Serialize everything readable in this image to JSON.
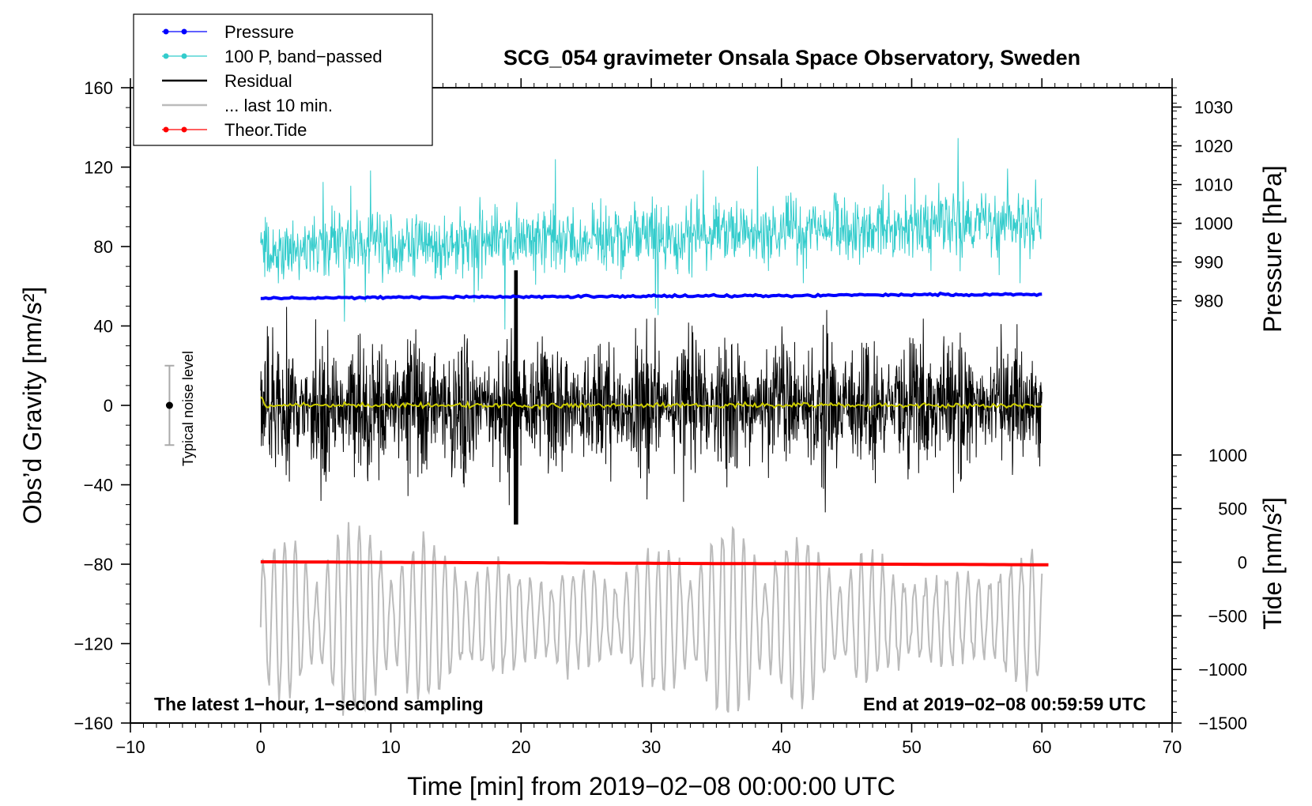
{
  "chart_data": {
    "type": "line",
    "title": "SCG_054 gravimeter Onsala Space Observatory, Sweden",
    "xlabel": "Time [min] from 2019−02−08 00:00:00 UTC",
    "ylabel_left": "Obs’d Gravity [nm/s²]",
    "ylabel_right_top": "Pressure [hPa]",
    "ylabel_right_bottom": "Tide [nm/s²]",
    "xlim": [
      -10,
      70
    ],
    "ylim": [
      -160,
      160
    ],
    "x_ticks": [
      -10,
      0,
      10,
      20,
      30,
      40,
      50,
      60,
      70
    ],
    "x_tick_labels": [
      "−10",
      "0",
      "10",
      "20",
      "30",
      "40",
      "50",
      "60",
      "70"
    ],
    "y_ticks": [
      -160,
      -120,
      -80,
      -40,
      0,
      40,
      80,
      120,
      160
    ],
    "y_tick_labels": [
      "−160",
      "−120",
      "−80",
      "−40",
      "0",
      "40",
      "80",
      "120",
      "160"
    ],
    "pressure_axis": {
      "ticks": [
        980,
        990,
        1000,
        1010,
        1020,
        1030
      ],
      "tick_labels": [
        "980",
        "990",
        "1000",
        "1010",
        "1020",
        "1030"
      ],
      "range_hPa": [
        973.5,
        1035
      ],
      "maps_to_gravity": [
        40,
        160
      ]
    },
    "tide_axis": {
      "ticks": [
        -1500,
        -1000,
        -500,
        0,
        500,
        1000
      ],
      "tick_labels": [
        "−1500",
        "−1000",
        "−500",
        "0",
        "500",
        "1000"
      ],
      "range": [
        -1500,
        1000
      ],
      "maps_to_gravity": [
        -160,
        -25
      ]
    },
    "legend": [
      {
        "label": "Pressure",
        "color": "#0000ff",
        "marker": "dot"
      },
      {
        "label": "100 P, band−passed",
        "color": "#33cccc",
        "marker": "dot"
      },
      {
        "label": "Residual",
        "color": "#000000",
        "marker": "none"
      },
      {
        "label": "... last 10 min.",
        "color": "#bbbbbb",
        "marker": "none"
      },
      {
        "label": "Theor.Tide",
        "color": "#ff0000",
        "marker": "dot"
      }
    ],
    "series": [
      {
        "name": "Pressure",
        "color": "#0000ff",
        "x_range": [
          0,
          60
        ],
        "y_start": 54,
        "y_end": 56
      },
      {
        "name": "100 P, band−passed",
        "color": "#33cccc",
        "x_range": [
          0,
          60
        ],
        "center_start": 78,
        "center_end": 93,
        "spread": 18
      },
      {
        "name": "Residual",
        "color": "#000000",
        "x_range": [
          0,
          60
        ],
        "center": 0,
        "spread": 35
      },
      {
        "name": "Residual smoothed",
        "color": "#cccc00",
        "x_range": [
          0,
          60
        ],
        "center": 0
      },
      {
        "name": "... last 10 min.",
        "color": "#bbbbbb",
        "x_range": [
          0,
          60
        ],
        "center": -108,
        "spread": 28
      },
      {
        "name": "Theor.Tide",
        "color": "#ff0000",
        "x_range": [
          0,
          60.5
        ],
        "y_start": -78.8,
        "y_end": -80.3
      }
    ],
    "noise_bar": {
      "label": "Typical noise level",
      "x": -7,
      "center": 0,
      "half_range": 20
    },
    "notes": {
      "left": "The latest 1−hour, 1−second sampling",
      "right": "End at 2019−02−08 00:59:59 UTC"
    },
    "colors": {
      "pressure": "#0000ff",
      "bandpassed": "#33cccc",
      "residual": "#000000",
      "smoothed": "#cccc00",
      "last10": "#bbbbbb",
      "tide": "#ff0000"
    }
  }
}
